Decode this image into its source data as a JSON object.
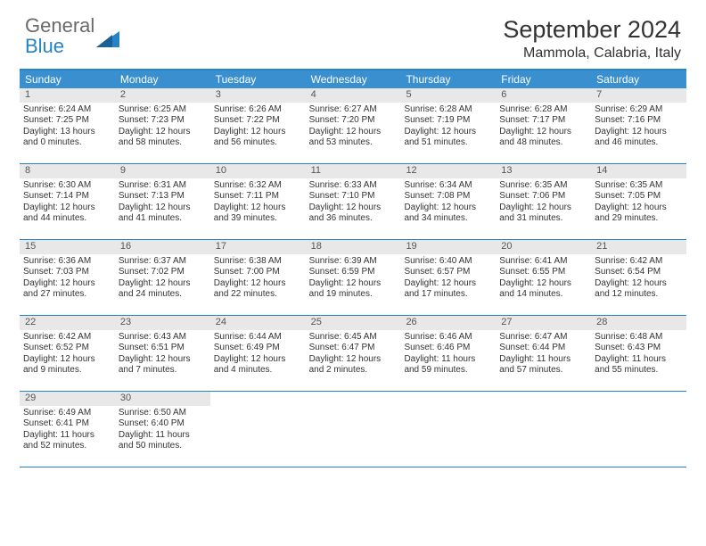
{
  "logo": {
    "part1": "General",
    "part2": "Blue"
  },
  "title": "September 2024",
  "location": "Mammola, Calabria, Italy",
  "colors": {
    "accent": "#2583c6",
    "header_bg": "#3a8fce",
    "daynum_bg": "#e8e8e8",
    "text": "#333333",
    "logo_gray": "#6a6a6a"
  },
  "dow": [
    "Sunday",
    "Monday",
    "Tuesday",
    "Wednesday",
    "Thursday",
    "Friday",
    "Saturday"
  ],
  "weeks": [
    [
      {
        "n": "1",
        "sr": "Sunrise: 6:24 AM",
        "ss": "Sunset: 7:25 PM",
        "d1": "Daylight: 13 hours",
        "d2": "and 0 minutes."
      },
      {
        "n": "2",
        "sr": "Sunrise: 6:25 AM",
        "ss": "Sunset: 7:23 PM",
        "d1": "Daylight: 12 hours",
        "d2": "and 58 minutes."
      },
      {
        "n": "3",
        "sr": "Sunrise: 6:26 AM",
        "ss": "Sunset: 7:22 PM",
        "d1": "Daylight: 12 hours",
        "d2": "and 56 minutes."
      },
      {
        "n": "4",
        "sr": "Sunrise: 6:27 AM",
        "ss": "Sunset: 7:20 PM",
        "d1": "Daylight: 12 hours",
        "d2": "and 53 minutes."
      },
      {
        "n": "5",
        "sr": "Sunrise: 6:28 AM",
        "ss": "Sunset: 7:19 PM",
        "d1": "Daylight: 12 hours",
        "d2": "and 51 minutes."
      },
      {
        "n": "6",
        "sr": "Sunrise: 6:28 AM",
        "ss": "Sunset: 7:17 PM",
        "d1": "Daylight: 12 hours",
        "d2": "and 48 minutes."
      },
      {
        "n": "7",
        "sr": "Sunrise: 6:29 AM",
        "ss": "Sunset: 7:16 PM",
        "d1": "Daylight: 12 hours",
        "d2": "and 46 minutes."
      }
    ],
    [
      {
        "n": "8",
        "sr": "Sunrise: 6:30 AM",
        "ss": "Sunset: 7:14 PM",
        "d1": "Daylight: 12 hours",
        "d2": "and 44 minutes."
      },
      {
        "n": "9",
        "sr": "Sunrise: 6:31 AM",
        "ss": "Sunset: 7:13 PM",
        "d1": "Daylight: 12 hours",
        "d2": "and 41 minutes."
      },
      {
        "n": "10",
        "sr": "Sunrise: 6:32 AM",
        "ss": "Sunset: 7:11 PM",
        "d1": "Daylight: 12 hours",
        "d2": "and 39 minutes."
      },
      {
        "n": "11",
        "sr": "Sunrise: 6:33 AM",
        "ss": "Sunset: 7:10 PM",
        "d1": "Daylight: 12 hours",
        "d2": "and 36 minutes."
      },
      {
        "n": "12",
        "sr": "Sunrise: 6:34 AM",
        "ss": "Sunset: 7:08 PM",
        "d1": "Daylight: 12 hours",
        "d2": "and 34 minutes."
      },
      {
        "n": "13",
        "sr": "Sunrise: 6:35 AM",
        "ss": "Sunset: 7:06 PM",
        "d1": "Daylight: 12 hours",
        "d2": "and 31 minutes."
      },
      {
        "n": "14",
        "sr": "Sunrise: 6:35 AM",
        "ss": "Sunset: 7:05 PM",
        "d1": "Daylight: 12 hours",
        "d2": "and 29 minutes."
      }
    ],
    [
      {
        "n": "15",
        "sr": "Sunrise: 6:36 AM",
        "ss": "Sunset: 7:03 PM",
        "d1": "Daylight: 12 hours",
        "d2": "and 27 minutes."
      },
      {
        "n": "16",
        "sr": "Sunrise: 6:37 AM",
        "ss": "Sunset: 7:02 PM",
        "d1": "Daylight: 12 hours",
        "d2": "and 24 minutes."
      },
      {
        "n": "17",
        "sr": "Sunrise: 6:38 AM",
        "ss": "Sunset: 7:00 PM",
        "d1": "Daylight: 12 hours",
        "d2": "and 22 minutes."
      },
      {
        "n": "18",
        "sr": "Sunrise: 6:39 AM",
        "ss": "Sunset: 6:59 PM",
        "d1": "Daylight: 12 hours",
        "d2": "and 19 minutes."
      },
      {
        "n": "19",
        "sr": "Sunrise: 6:40 AM",
        "ss": "Sunset: 6:57 PM",
        "d1": "Daylight: 12 hours",
        "d2": "and 17 minutes."
      },
      {
        "n": "20",
        "sr": "Sunrise: 6:41 AM",
        "ss": "Sunset: 6:55 PM",
        "d1": "Daylight: 12 hours",
        "d2": "and 14 minutes."
      },
      {
        "n": "21",
        "sr": "Sunrise: 6:42 AM",
        "ss": "Sunset: 6:54 PM",
        "d1": "Daylight: 12 hours",
        "d2": "and 12 minutes."
      }
    ],
    [
      {
        "n": "22",
        "sr": "Sunrise: 6:42 AM",
        "ss": "Sunset: 6:52 PM",
        "d1": "Daylight: 12 hours",
        "d2": "and 9 minutes."
      },
      {
        "n": "23",
        "sr": "Sunrise: 6:43 AM",
        "ss": "Sunset: 6:51 PM",
        "d1": "Daylight: 12 hours",
        "d2": "and 7 minutes."
      },
      {
        "n": "24",
        "sr": "Sunrise: 6:44 AM",
        "ss": "Sunset: 6:49 PM",
        "d1": "Daylight: 12 hours",
        "d2": "and 4 minutes."
      },
      {
        "n": "25",
        "sr": "Sunrise: 6:45 AM",
        "ss": "Sunset: 6:47 PM",
        "d1": "Daylight: 12 hours",
        "d2": "and 2 minutes."
      },
      {
        "n": "26",
        "sr": "Sunrise: 6:46 AM",
        "ss": "Sunset: 6:46 PM",
        "d1": "Daylight: 11 hours",
        "d2": "and 59 minutes."
      },
      {
        "n": "27",
        "sr": "Sunrise: 6:47 AM",
        "ss": "Sunset: 6:44 PM",
        "d1": "Daylight: 11 hours",
        "d2": "and 57 minutes."
      },
      {
        "n": "28",
        "sr": "Sunrise: 6:48 AM",
        "ss": "Sunset: 6:43 PM",
        "d1": "Daylight: 11 hours",
        "d2": "and 55 minutes."
      }
    ],
    [
      {
        "n": "29",
        "sr": "Sunrise: 6:49 AM",
        "ss": "Sunset: 6:41 PM",
        "d1": "Daylight: 11 hours",
        "d2": "and 52 minutes."
      },
      {
        "n": "30",
        "sr": "Sunrise: 6:50 AM",
        "ss": "Sunset: 6:40 PM",
        "d1": "Daylight: 11 hours",
        "d2": "and 50 minutes."
      },
      {
        "empty": true
      },
      {
        "empty": true
      },
      {
        "empty": true
      },
      {
        "empty": true
      },
      {
        "empty": true
      }
    ]
  ]
}
